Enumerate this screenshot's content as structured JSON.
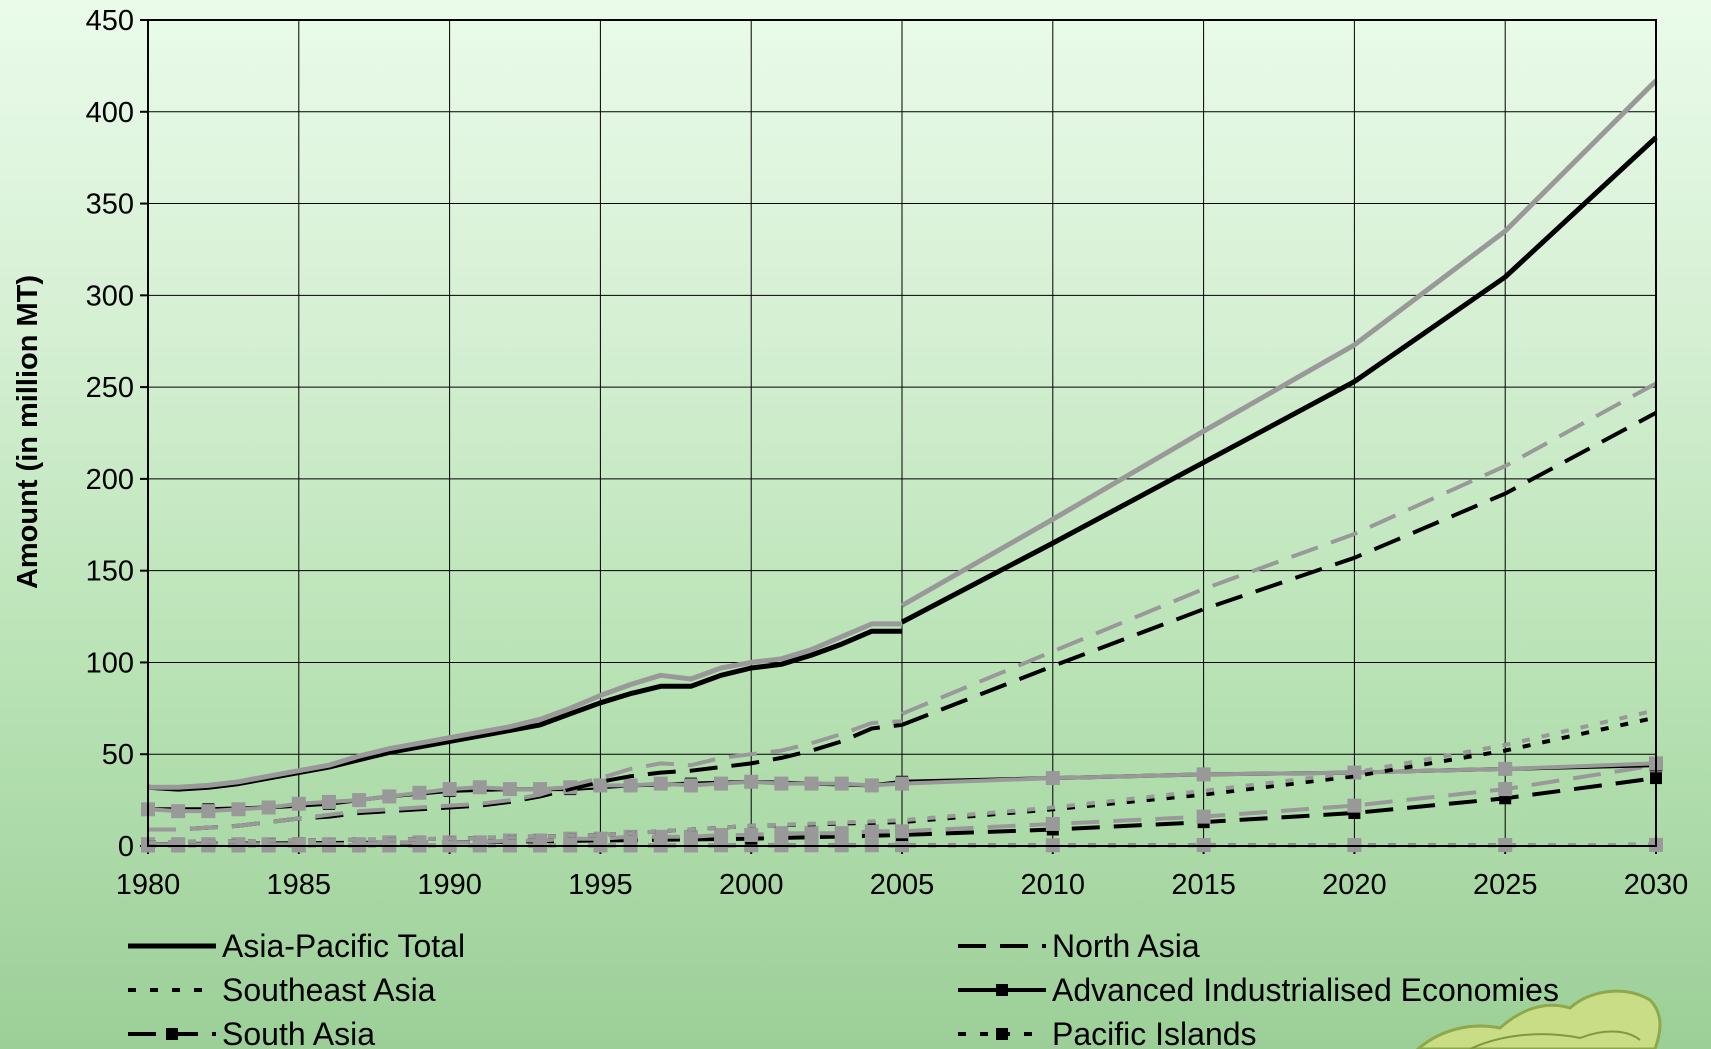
{
  "chart_data": {
    "type": "line",
    "title": "",
    "xlabel": "",
    "ylabel": "Amount (in million MT)",
    "xlim": [
      1980,
      2030
    ],
    "ylim": [
      0,
      450
    ],
    "x_ticks": [
      "1980",
      "1985",
      "1990",
      "1995",
      "2000",
      "2005",
      "2010",
      "2015",
      "2020",
      "2025",
      "2030"
    ],
    "y_ticks": [
      "0",
      "50",
      "100",
      "150",
      "200",
      "250",
      "300",
      "350",
      "400",
      "450"
    ],
    "grid": true,
    "legend_position": "bottom",
    "colors": {
      "black": "#000000",
      "gray": "#999999"
    },
    "series": [
      {
        "name": "Asia-Pacific Total",
        "style": "solid",
        "color": "black",
        "historical": [
          [
            1980,
            32
          ],
          [
            1981,
            31
          ],
          [
            1982,
            32
          ],
          [
            1983,
            34
          ],
          [
            1984,
            37
          ],
          [
            1985,
            40
          ],
          [
            1986,
            43
          ],
          [
            1987,
            47
          ],
          [
            1988,
            51
          ],
          [
            1989,
            54
          ],
          [
            1990,
            57
          ],
          [
            1991,
            60
          ],
          [
            1992,
            63
          ],
          [
            1993,
            66
          ],
          [
            1994,
            72
          ],
          [
            1995,
            78
          ],
          [
            1996,
            83
          ],
          [
            1997,
            87
          ],
          [
            1998,
            87
          ],
          [
            1999,
            93
          ],
          [
            2000,
            97
          ],
          [
            2001,
            99
          ],
          [
            2002,
            104
          ],
          [
            2003,
            110
          ],
          [
            2004,
            117
          ],
          [
            2005,
            117
          ]
        ],
        "projection": [
          [
            2005,
            122
          ],
          [
            2010,
            165
          ],
          [
            2015,
            209
          ],
          [
            2020,
            253
          ],
          [
            2025,
            310
          ],
          [
            2030,
            386
          ]
        ]
      },
      {
        "name": "Asia-Pacific Total (gray)",
        "style": "solid",
        "color": "gray",
        "historical": [
          [
            1980,
            32
          ],
          [
            1981,
            32
          ],
          [
            1982,
            33
          ],
          [
            1983,
            35
          ],
          [
            1984,
            38
          ],
          [
            1985,
            41
          ],
          [
            1986,
            44
          ],
          [
            1987,
            49
          ],
          [
            1988,
            53
          ],
          [
            1989,
            56
          ],
          [
            1990,
            59
          ],
          [
            1991,
            62
          ],
          [
            1992,
            65
          ],
          [
            1993,
            69
          ],
          [
            1994,
            75
          ],
          [
            1995,
            82
          ],
          [
            1996,
            88
          ],
          [
            1997,
            93
          ],
          [
            1998,
            91
          ],
          [
            1999,
            97
          ],
          [
            2000,
            100
          ],
          [
            2001,
            102
          ],
          [
            2002,
            107
          ],
          [
            2003,
            114
          ],
          [
            2004,
            121
          ],
          [
            2005,
            121
          ]
        ],
        "projection": [
          [
            2005,
            131
          ],
          [
            2010,
            178
          ],
          [
            2015,
            226
          ],
          [
            2020,
            273
          ],
          [
            2025,
            335
          ],
          [
            2030,
            417
          ]
        ]
      },
      {
        "name": "North Asia",
        "style": "dash",
        "color": "black",
        "historical": [
          [
            1980,
            9
          ],
          [
            1981,
            9
          ],
          [
            1982,
            10
          ],
          [
            1983,
            11
          ],
          [
            1984,
            13
          ],
          [
            1985,
            15
          ],
          [
            1986,
            16
          ],
          [
            1987,
            18
          ],
          [
            1988,
            19
          ],
          [
            1989,
            20
          ],
          [
            1990,
            21
          ],
          [
            1991,
            22
          ],
          [
            1992,
            24
          ],
          [
            1993,
            27
          ],
          [
            1994,
            31
          ],
          [
            1995,
            35
          ],
          [
            1996,
            38
          ],
          [
            1997,
            40
          ],
          [
            1998,
            41
          ],
          [
            1999,
            43
          ],
          [
            2000,
            45
          ],
          [
            2001,
            48
          ],
          [
            2002,
            52
          ],
          [
            2003,
            57
          ],
          [
            2004,
            64
          ],
          [
            2005,
            66
          ]
        ],
        "projection": [
          [
            2005,
            66
          ],
          [
            2010,
            98
          ],
          [
            2015,
            129
          ],
          [
            2020,
            157
          ],
          [
            2025,
            192
          ],
          [
            2030,
            236
          ]
        ]
      },
      {
        "name": "North Asia (gray)",
        "style": "dash",
        "color": "gray",
        "historical": [
          [
            1980,
            9
          ],
          [
            1981,
            9
          ],
          [
            1982,
            10
          ],
          [
            1983,
            11
          ],
          [
            1984,
            13
          ],
          [
            1985,
            15
          ],
          [
            1986,
            17
          ],
          [
            1987,
            19
          ],
          [
            1988,
            20
          ],
          [
            1989,
            21
          ],
          [
            1990,
            22
          ],
          [
            1991,
            23
          ],
          [
            1992,
            25
          ],
          [
            1993,
            28
          ],
          [
            1994,
            33
          ],
          [
            1995,
            37
          ],
          [
            1996,
            42
          ],
          [
            1997,
            45
          ],
          [
            1998,
            44
          ],
          [
            1999,
            48
          ],
          [
            2000,
            50
          ],
          [
            2001,
            52
          ],
          [
            2002,
            56
          ],
          [
            2003,
            61
          ],
          [
            2004,
            67
          ],
          [
            2005,
            68
          ]
        ],
        "projection": [
          [
            2005,
            72
          ],
          [
            2010,
            106
          ],
          [
            2015,
            140
          ],
          [
            2020,
            170
          ],
          [
            2025,
            207
          ],
          [
            2030,
            252
          ]
        ]
      },
      {
        "name": "Southeast Asia",
        "style": "dot",
        "color": "black",
        "points": [
          [
            1980,
            2
          ],
          [
            1985,
            3
          ],
          [
            1990,
            4
          ],
          [
            1995,
            6
          ],
          [
            2000,
            11
          ],
          [
            2005,
            13
          ],
          [
            2010,
            20
          ],
          [
            2015,
            28
          ],
          [
            2020,
            38
          ],
          [
            2025,
            52
          ],
          [
            2030,
            70
          ]
        ]
      },
      {
        "name": "Southeast Asia (gray)",
        "style": "dot",
        "color": "gray",
        "points": [
          [
            1980,
            2
          ],
          [
            1985,
            3
          ],
          [
            1990,
            4
          ],
          [
            1995,
            6
          ],
          [
            2000,
            11
          ],
          [
            2005,
            14
          ],
          [
            2010,
            21
          ],
          [
            2015,
            30
          ],
          [
            2020,
            40
          ],
          [
            2025,
            55
          ],
          [
            2030,
            74
          ]
        ]
      },
      {
        "name": "Advanced Industrialised Economies",
        "style": "solid-square",
        "color": "black",
        "points": [
          [
            1980,
            20
          ],
          [
            1982,
            20
          ],
          [
            1984,
            21
          ],
          [
            1986,
            23
          ],
          [
            1988,
            27
          ],
          [
            1990,
            30
          ],
          [
            1992,
            31
          ],
          [
            1994,
            31
          ],
          [
            1996,
            33
          ],
          [
            1998,
            34
          ],
          [
            2000,
            35
          ],
          [
            2002,
            34
          ],
          [
            2004,
            33
          ],
          [
            2005,
            35
          ],
          [
            2010,
            37
          ],
          [
            2015,
            39
          ],
          [
            2020,
            40
          ],
          [
            2025,
            42
          ],
          [
            2030,
            44
          ]
        ]
      },
      {
        "name": "Advanced Industrialised Economies (gray)",
        "style": "solid-square",
        "color": "gray",
        "points": [
          [
            1980,
            20
          ],
          [
            1981,
            19
          ],
          [
            1982,
            19
          ],
          [
            1983,
            20
          ],
          [
            1984,
            21
          ],
          [
            1985,
            23
          ],
          [
            1986,
            24
          ],
          [
            1987,
            25
          ],
          [
            1988,
            27
          ],
          [
            1989,
            29
          ],
          [
            1990,
            31
          ],
          [
            1991,
            32
          ],
          [
            1992,
            31
          ],
          [
            1993,
            31
          ],
          [
            1994,
            32
          ],
          [
            1995,
            33
          ],
          [
            1996,
            33
          ],
          [
            1997,
            34
          ],
          [
            1998,
            33
          ],
          [
            1999,
            34
          ],
          [
            2000,
            35
          ],
          [
            2001,
            34
          ],
          [
            2002,
            34
          ],
          [
            2003,
            34
          ],
          [
            2004,
            33
          ],
          [
            2005,
            34
          ],
          [
            2010,
            37
          ],
          [
            2015,
            39
          ],
          [
            2020,
            40
          ],
          [
            2025,
            42
          ],
          [
            2030,
            45
          ]
        ]
      },
      {
        "name": "South Asia",
        "style": "dash-square",
        "color": "black",
        "points": [
          [
            1980,
            1
          ],
          [
            1985,
            1.5
          ],
          [
            1990,
            2
          ],
          [
            1995,
            3
          ],
          [
            2000,
            4
          ],
          [
            2005,
            6
          ],
          [
            2010,
            9
          ],
          [
            2015,
            13
          ],
          [
            2020,
            18
          ],
          [
            2025,
            26
          ],
          [
            2030,
            37
          ]
        ]
      },
      {
        "name": "South Asia (gray)",
        "style": "dash-square",
        "color": "gray",
        "points": [
          [
            1980,
            1
          ],
          [
            1981,
            1
          ],
          [
            1982,
            1
          ],
          [
            1983,
            1
          ],
          [
            1984,
            1
          ],
          [
            1985,
            1
          ],
          [
            1986,
            1
          ],
          [
            1987,
            1
          ],
          [
            1988,
            2
          ],
          [
            1989,
            2
          ],
          [
            1990,
            2
          ],
          [
            1991,
            2
          ],
          [
            1992,
            3
          ],
          [
            1993,
            3
          ],
          [
            1994,
            4
          ],
          [
            1995,
            4
          ],
          [
            1996,
            5
          ],
          [
            1997,
            5
          ],
          [
            1998,
            5
          ],
          [
            1999,
            6
          ],
          [
            2000,
            6
          ],
          [
            2001,
            7
          ],
          [
            2002,
            7
          ],
          [
            2003,
            7
          ],
          [
            2004,
            8
          ],
          [
            2005,
            8
          ],
          [
            2010,
            12
          ],
          [
            2015,
            16
          ],
          [
            2020,
            22
          ],
          [
            2025,
            31
          ],
          [
            2030,
            44
          ]
        ]
      },
      {
        "name": "Pacific Islands",
        "style": "dot-square",
        "color": "black",
        "points": [
          [
            1980,
            0.3
          ],
          [
            1985,
            0.3
          ],
          [
            1990,
            0.3
          ],
          [
            1995,
            0.3
          ],
          [
            2000,
            0.4
          ],
          [
            2005,
            0.4
          ],
          [
            2010,
            0.4
          ],
          [
            2015,
            0.5
          ],
          [
            2020,
            0.5
          ],
          [
            2025,
            0.5
          ],
          [
            2030,
            0.6
          ]
        ]
      },
      {
        "name": "Pacific Islands (gray)",
        "style": "dot-square",
        "color": "gray",
        "points": [
          [
            1980,
            0.3
          ],
          [
            1981,
            0.3
          ],
          [
            1982,
            0.3
          ],
          [
            1983,
            0.3
          ],
          [
            1984,
            0.3
          ],
          [
            1985,
            0.3
          ],
          [
            1986,
            0.3
          ],
          [
            1987,
            0.3
          ],
          [
            1988,
            0.3
          ],
          [
            1989,
            0.3
          ],
          [
            1990,
            0.3
          ],
          [
            1991,
            0.3
          ],
          [
            1992,
            0.3
          ],
          [
            1993,
            0.3
          ],
          [
            1994,
            0.3
          ],
          [
            1995,
            0.3
          ],
          [
            1996,
            0.3
          ],
          [
            1997,
            0.3
          ],
          [
            1998,
            0.3
          ],
          [
            1999,
            0.4
          ],
          [
            2000,
            0.4
          ],
          [
            2001,
            0.4
          ],
          [
            2002,
            0.4
          ],
          [
            2003,
            0.4
          ],
          [
            2004,
            0.4
          ],
          [
            2005,
            0.4
          ],
          [
            2010,
            0.4
          ],
          [
            2015,
            0.5
          ],
          [
            2020,
            0.5
          ],
          [
            2025,
            0.5
          ],
          [
            2030,
            0.6
          ]
        ]
      }
    ],
    "legend": [
      {
        "label": "Asia-Pacific Total",
        "style": "solid"
      },
      {
        "label": "North Asia",
        "style": "dash"
      },
      {
        "label": "Southeast Asia",
        "style": "dot"
      },
      {
        "label": "Advanced Industrialised Economies",
        "style": "solid-square"
      },
      {
        "label": "South Asia",
        "style": "dash-square"
      },
      {
        "label": "Pacific Islands",
        "style": "dot-square"
      }
    ]
  }
}
